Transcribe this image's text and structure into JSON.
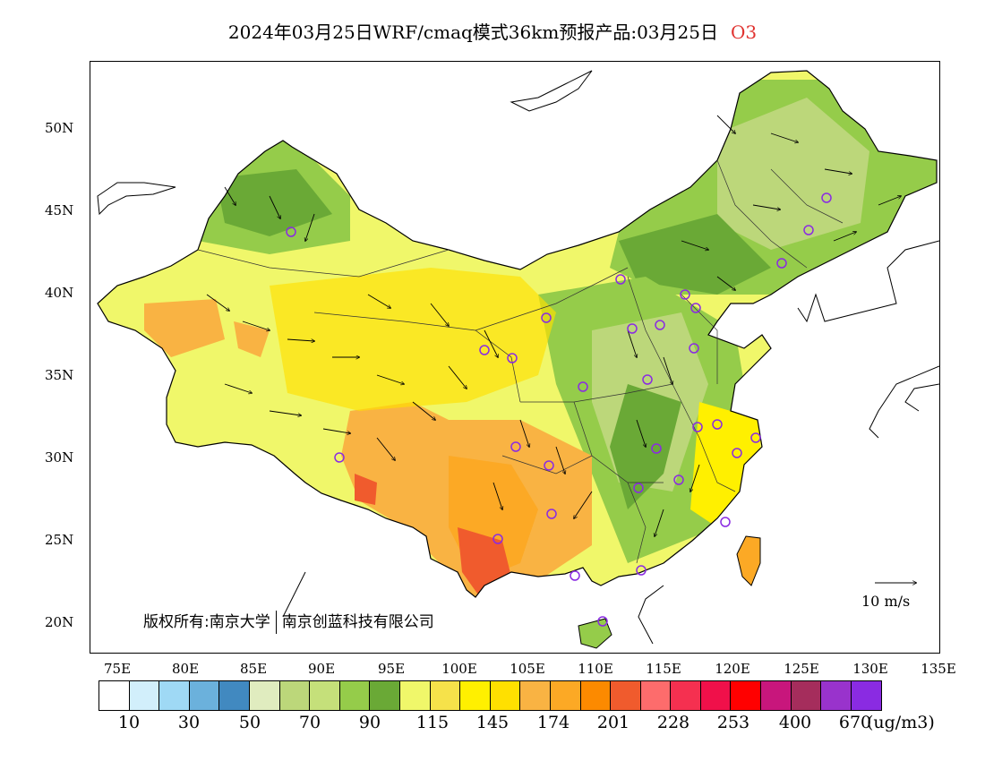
{
  "title": {
    "text": "2024年03月25日WRF/cmaq模式36km预报产品:03月25日",
    "variable": "O3"
  },
  "map": {
    "lat_labels": [
      "50N",
      "45N",
      "40N",
      "35N",
      "30N",
      "25N",
      "20N"
    ],
    "lon_labels": [
      "75E",
      "80E",
      "85E",
      "90E",
      "95E",
      "100E",
      "105E",
      "110E",
      "115E",
      "120E",
      "125E",
      "130E",
      "135E"
    ],
    "copyright_left": "版权所有:南京大学",
    "copyright_right": "南京创蓝科技有限公司",
    "wind_reference": "10 m/s"
  },
  "legend": {
    "colors": [
      "#ffffff",
      "#d2effb",
      "#9fd9f5",
      "#6bb1dc",
      "#4189c0",
      "#e0ecbf",
      "#bcd77a",
      "#c5e07a",
      "#95cc4a",
      "#6aa936",
      "#f0f76a",
      "#f6e24a",
      "#fff000",
      "#ffe000",
      "#f9b343",
      "#fca925",
      "#fc8a00",
      "#f05b2d",
      "#fd6c6c",
      "#f53050",
      "#f0104a",
      "#ff0000",
      "#c8167c",
      "#a52d5c",
      "#9933cc",
      "#8a2be2"
    ],
    "labels": [
      "10",
      "30",
      "50",
      "70",
      "90",
      "115",
      "145",
      "174",
      "201",
      "228",
      "253",
      "400",
      "670"
    ],
    "unit": "(ug/m3)"
  }
}
